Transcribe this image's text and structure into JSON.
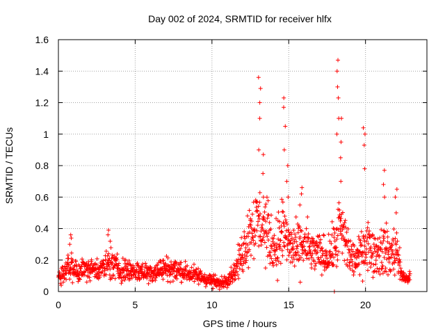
{
  "chart_data": {
    "type": "scatter",
    "title": "Day 002 of 2024, SRMTID for receiver hlfx",
    "xlabel": "GPS time / hours",
    "ylabel": "SRMTID / TECUs",
    "xlim": [
      0,
      24
    ],
    "ylim": [
      0,
      1.6
    ],
    "x_ticks": [
      0,
      5,
      10,
      15,
      20
    ],
    "x_tick_labels": [
      "0",
      "5",
      "10",
      "15",
      "20"
    ],
    "y_ticks": [
      0,
      0.2,
      0.4,
      0.6,
      0.8,
      1,
      1.2,
      1.4,
      1.6
    ],
    "y_tick_labels": [
      "0",
      "0.2",
      "0.4",
      "0.6",
      "0.8",
      "1",
      "1.2",
      "1.4",
      "1.6"
    ],
    "grid": true,
    "marker": "+",
    "series_color": "#ff0000",
    "time_range_hours": [
      0,
      22.9
    ],
    "envelope": {
      "x": [
        0,
        0.5,
        0.8,
        1,
        2,
        3,
        3.3,
        4,
        5,
        6,
        7,
        8,
        9,
        10,
        10.5,
        11,
        11.5,
        12,
        12.5,
        13,
        13.2,
        13.5,
        14,
        14.3,
        14.6,
        14.8,
        15,
        15.5,
        16,
        16.5,
        17,
        17.5,
        18,
        18.3,
        18.6,
        19,
        19.5,
        19.9,
        20.2,
        20.6,
        21,
        21.3,
        21.6,
        22,
        22.3,
        22.6,
        22.9
      ],
      "center": [
        0.1,
        0.13,
        0.18,
        0.13,
        0.14,
        0.15,
        0.18,
        0.14,
        0.13,
        0.12,
        0.15,
        0.13,
        0.1,
        0.07,
        0.05,
        0.08,
        0.13,
        0.25,
        0.4,
        0.45,
        0.42,
        0.4,
        0.28,
        0.3,
        0.38,
        0.36,
        0.3,
        0.26,
        0.3,
        0.25,
        0.24,
        0.22,
        0.28,
        0.4,
        0.35,
        0.22,
        0.2,
        0.3,
        0.3,
        0.24,
        0.26,
        0.27,
        0.22,
        0.28,
        0.12,
        0.08,
        0.09
      ],
      "spread": [
        0.05,
        0.06,
        0.09,
        0.06,
        0.06,
        0.07,
        0.1,
        0.07,
        0.06,
        0.06,
        0.07,
        0.06,
        0.05,
        0.04,
        0.03,
        0.04,
        0.06,
        0.12,
        0.18,
        0.2,
        0.2,
        0.2,
        0.12,
        0.18,
        0.22,
        0.2,
        0.14,
        0.14,
        0.16,
        0.12,
        0.12,
        0.1,
        0.14,
        0.22,
        0.2,
        0.12,
        0.1,
        0.16,
        0.14,
        0.12,
        0.14,
        0.16,
        0.12,
        0.16,
        0.06,
        0.03,
        0.03
      ]
    },
    "spikes": [
      {
        "x": 0.8,
        "values": [
          0.3,
          0.34,
          0.36
        ]
      },
      {
        "x": 3.3,
        "values": [
          0.32,
          0.36,
          0.39
        ]
      },
      {
        "x": 13.1,
        "values": [
          0.9,
          1.1,
          1.2,
          1.29,
          1.36
        ]
      },
      {
        "x": 13.3,
        "values": [
          0.6,
          0.75,
          0.87
        ]
      },
      {
        "x": 14.7,
        "values": [
          0.9,
          1.05,
          1.17,
          1.23
        ]
      },
      {
        "x": 14.9,
        "values": [
          0.6,
          0.7,
          0.8
        ]
      },
      {
        "x": 15.8,
        "values": [
          0.55,
          0.62,
          0.66
        ]
      },
      {
        "x": 18.2,
        "values": [
          1.0,
          1.1,
          1.23,
          1.3,
          1.4,
          1.47
        ]
      },
      {
        "x": 18.4,
        "values": [
          0.7,
          0.85,
          0.95,
          1.1
        ]
      },
      {
        "x": 19.9,
        "values": [
          0.78,
          0.93,
          1.0,
          1.04
        ]
      },
      {
        "x": 21.2,
        "values": [
          0.6,
          0.68,
          0.77
        ]
      },
      {
        "x": 22.0,
        "values": [
          0.5,
          0.6,
          0.65
        ]
      },
      {
        "x": 17.9,
        "values": [
          0.0
        ]
      }
    ]
  }
}
